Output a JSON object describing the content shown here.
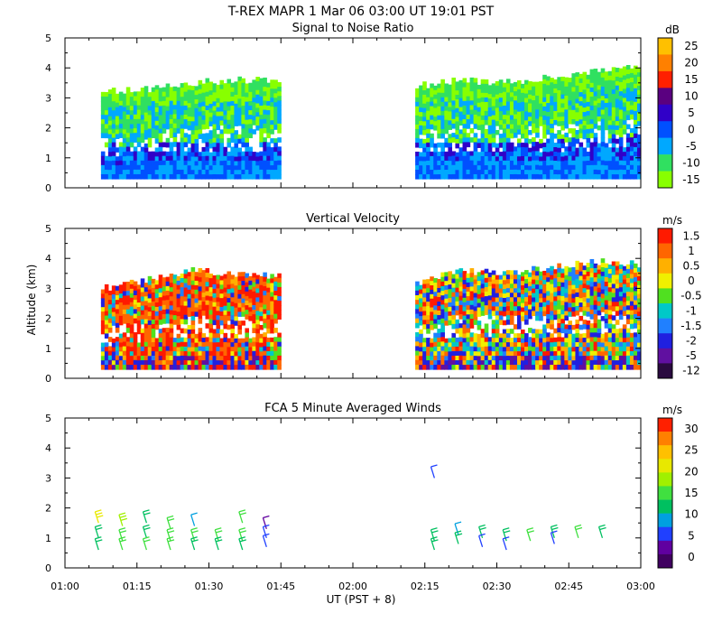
{
  "page": {
    "title": "T-REX   MAPR   1 Mar 06   03:00 UT   19:01   PST"
  },
  "x_axis": {
    "label": "UT  (PST + 8)",
    "range": [
      0,
      120
    ],
    "ticks": [
      0,
      15,
      30,
      45,
      60,
      75,
      90,
      105,
      120
    ],
    "tick_labels": [
      "01:00",
      "01:15",
      "01:30",
      "01:45",
      "02:00",
      "02:15",
      "02:30",
      "02:45",
      "03:00"
    ]
  },
  "y_axis": {
    "label": "Altitude (km)",
    "range": [
      0,
      5
    ],
    "ticks": [
      0,
      1,
      2,
      3,
      4,
      5
    ],
    "tick_labels": [
      "0",
      "1",
      "2",
      "3",
      "4",
      "5"
    ]
  },
  "chart_data": [
    {
      "type": "heatmap",
      "title": "Signal to Noise Ratio",
      "unit": "dB",
      "colorbar": {
        "labels": [
          "25",
          "20",
          "15",
          "10",
          "5",
          "0",
          "-5",
          "-10",
          "-15"
        ],
        "colors": [
          "#ffc000",
          "#ff8000",
          "#ff2000",
          "#5a0080",
          "#3000c8",
          "#0050ff",
          "#00a8ff",
          "#30e060",
          "#88ff00"
        ]
      },
      "segments": [
        {
          "x_start": 7.5,
          "x_end": 45,
          "tops": [
            3.2,
            3.3,
            3.5,
            3.6,
            3.6
          ]
        },
        {
          "x_start": 73,
          "x_end": 120,
          "tops": [
            3.4,
            3.6,
            3.5,
            3.7,
            3.9,
            4.0
          ]
        }
      ],
      "bottom": 0.3
    },
    {
      "type": "heatmap",
      "title": "Vertical Velocity",
      "unit": "m/s",
      "colorbar": {
        "labels": [
          "1.5",
          "1",
          "0.5",
          "0",
          "-0.5",
          "-1",
          "-1.5",
          "-2",
          "-5",
          "-12"
        ],
        "colors": [
          "#ff1a00",
          "#ff6600",
          "#ffb000",
          "#f0f000",
          "#50e020",
          "#00c8c8",
          "#2080ff",
          "#2020e0",
          "#6010a0",
          "#2a0a40"
        ]
      },
      "segments": [
        {
          "x_start": 7.5,
          "x_end": 45,
          "tops": [
            3.0,
            3.3,
            3.6,
            3.5,
            3.4
          ]
        },
        {
          "x_start": 73,
          "x_end": 120,
          "tops": [
            3.2,
            3.6,
            3.5,
            3.7,
            3.9,
            3.8
          ]
        }
      ],
      "bottom": 0.3
    },
    {
      "type": "barbs",
      "title": "FCA 5 Minute Averaged Winds",
      "unit": "m/s",
      "colorbar": {
        "labels": [
          "30",
          "25",
          "20",
          "15",
          "10",
          "5",
          "0"
        ],
        "colors": [
          "#ff2000",
          "#ff8000",
          "#ffc000",
          "#e8e800",
          "#a0f000",
          "#40e040",
          "#00c060",
          "#00a0e0",
          "#2040ff",
          "#6000a0",
          "#400060"
        ]
      },
      "barbs": [
        {
          "time": 7,
          "alt": 1.5,
          "speed": 21
        },
        {
          "time": 7,
          "alt": 1.0,
          "speed": 13
        },
        {
          "time": 7,
          "alt": 0.6,
          "speed": 12
        },
        {
          "time": 12,
          "alt": 1.4,
          "speed": 18
        },
        {
          "time": 12,
          "alt": 0.9,
          "speed": 15
        },
        {
          "time": 12,
          "alt": 0.6,
          "speed": 14
        },
        {
          "time": 17,
          "alt": 1.5,
          "speed": 11
        },
        {
          "time": 17,
          "alt": 1.0,
          "speed": 12
        },
        {
          "time": 17,
          "alt": 0.6,
          "speed": 14
        },
        {
          "time": 22,
          "alt": 1.3,
          "speed": 14
        },
        {
          "time": 22,
          "alt": 0.9,
          "speed": 15
        },
        {
          "time": 22,
          "alt": 0.6,
          "speed": 16
        },
        {
          "time": 27,
          "alt": 1.4,
          "speed": 9
        },
        {
          "time": 27,
          "alt": 0.9,
          "speed": 15
        },
        {
          "time": 27,
          "alt": 0.6,
          "speed": 13
        },
        {
          "time": 32,
          "alt": 0.9,
          "speed": 14
        },
        {
          "time": 32,
          "alt": 0.6,
          "speed": 12
        },
        {
          "time": 37,
          "alt": 1.5,
          "speed": 16
        },
        {
          "time": 37,
          "alt": 0.9,
          "speed": 15
        },
        {
          "time": 37,
          "alt": 0.6,
          "speed": 12
        },
        {
          "time": 42,
          "alt": 1.3,
          "speed": 4
        },
        {
          "time": 42,
          "alt": 1.0,
          "speed": 5
        },
        {
          "time": 42,
          "alt": 0.7,
          "speed": 5
        },
        {
          "time": 77,
          "alt": 3.0,
          "speed": 6
        },
        {
          "time": 77,
          "alt": 0.9,
          "speed": 12
        },
        {
          "time": 77,
          "alt": 0.6,
          "speed": 11
        },
        {
          "time": 82,
          "alt": 1.1,
          "speed": 10
        },
        {
          "time": 82,
          "alt": 0.8,
          "speed": 11
        },
        {
          "time": 87,
          "alt": 1.0,
          "speed": 12
        },
        {
          "time": 87,
          "alt": 0.7,
          "speed": 5
        },
        {
          "time": 92,
          "alt": 0.9,
          "speed": 13
        },
        {
          "time": 92,
          "alt": 0.6,
          "speed": 6
        },
        {
          "time": 97,
          "alt": 0.9,
          "speed": 14
        },
        {
          "time": 102,
          "alt": 1.0,
          "speed": 11
        },
        {
          "time": 102,
          "alt": 0.8,
          "speed": 7
        },
        {
          "time": 107,
          "alt": 1.0,
          "speed": 14
        },
        {
          "time": 112,
          "alt": 1.0,
          "speed": 13
        }
      ]
    }
  ]
}
